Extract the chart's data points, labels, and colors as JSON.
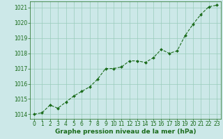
{
  "x": [
    0,
    1,
    2,
    3,
    4,
    5,
    6,
    7,
    8,
    9,
    10,
    11,
    12,
    13,
    14,
    15,
    16,
    17,
    18,
    19,
    20,
    21,
    22,
    23
  ],
  "y": [
    1014.0,
    1014.1,
    1014.6,
    1014.4,
    1014.8,
    1015.2,
    1015.5,
    1015.8,
    1016.3,
    1017.0,
    1017.0,
    1017.1,
    1017.5,
    1017.5,
    1017.4,
    1017.7,
    1018.25,
    1018.0,
    1018.15,
    1019.15,
    1019.9,
    1020.55,
    1021.05,
    1021.15
  ],
  "ylim": [
    1013.7,
    1021.4
  ],
  "yticks": [
    1014,
    1015,
    1016,
    1017,
    1018,
    1019,
    1020,
    1021
  ],
  "xlim": [
    -0.5,
    23.5
  ],
  "xticks": [
    0,
    1,
    2,
    3,
    4,
    5,
    6,
    7,
    8,
    9,
    10,
    11,
    12,
    13,
    14,
    15,
    16,
    17,
    18,
    19,
    20,
    21,
    22,
    23
  ],
  "line_color": "#1a6b1a",
  "marker_color": "#1a6b1a",
  "bg_color": "#cce8e8",
  "grid_color": "#99ccbb",
  "xlabel": "Graphe pression niveau de la mer (hPa)",
  "xlabel_color": "#1a6b1a",
  "tick_color": "#1a6b1a",
  "xlabel_fontsize": 6.5,
  "tick_fontsize": 5.5,
  "ytick_fontsize": 5.5
}
